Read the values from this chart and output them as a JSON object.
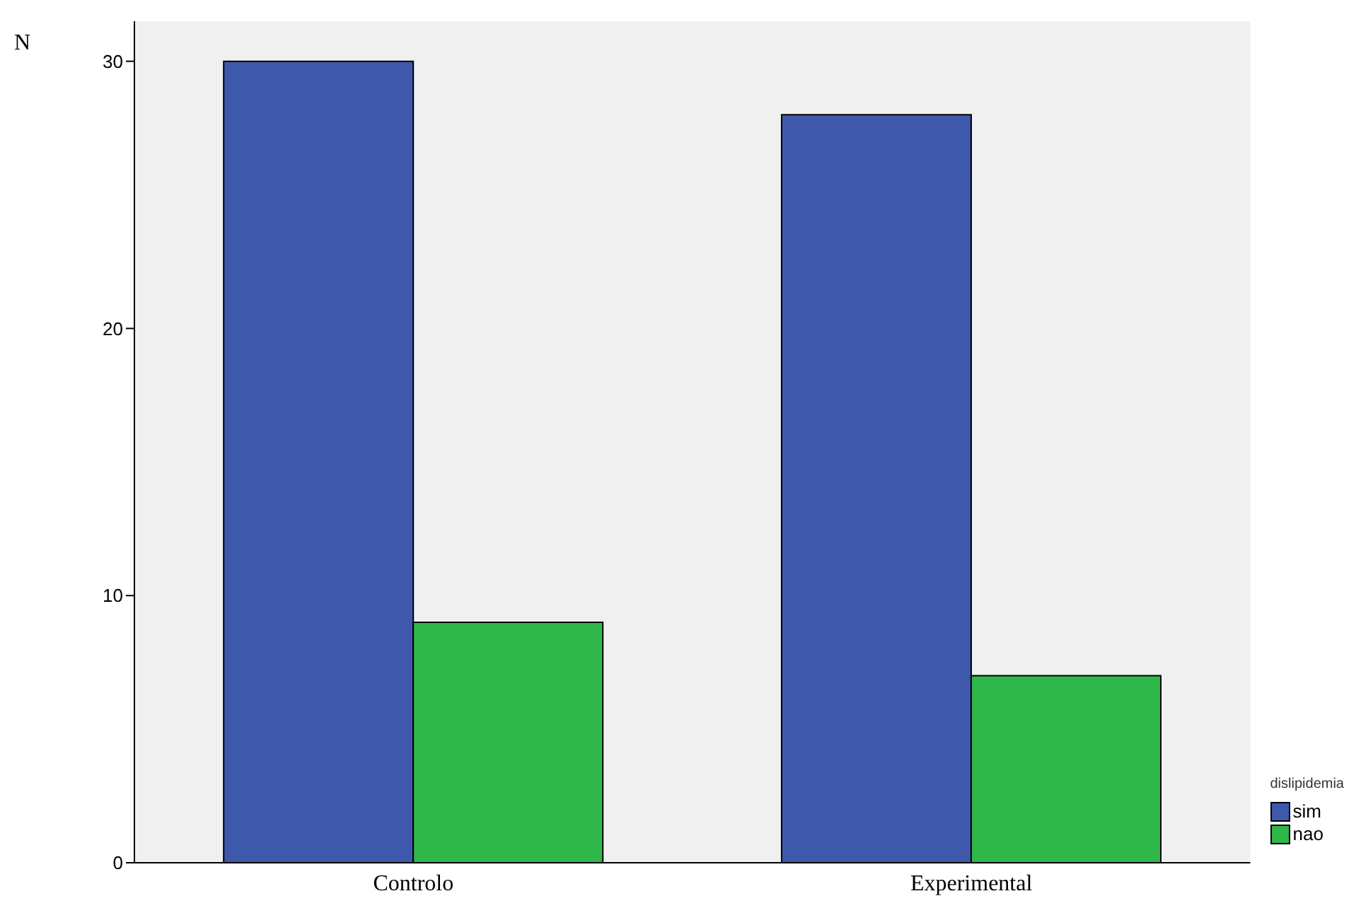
{
  "chart_data": {
    "type": "bar",
    "ylabel": "N",
    "legend_title": "dislipidemia",
    "categories": [
      "Controlo",
      "Experimental"
    ],
    "series": [
      {
        "name": "sim",
        "color": "#3e58ac",
        "values": [
          30,
          28
        ]
      },
      {
        "name": "nao",
        "color": "#2fb84a",
        "values": [
          9,
          7
        ]
      }
    ],
    "ylim": [
      0,
      31.5
    ],
    "yticks": [
      0,
      10,
      20,
      30
    ],
    "legend": "bottom right"
  }
}
